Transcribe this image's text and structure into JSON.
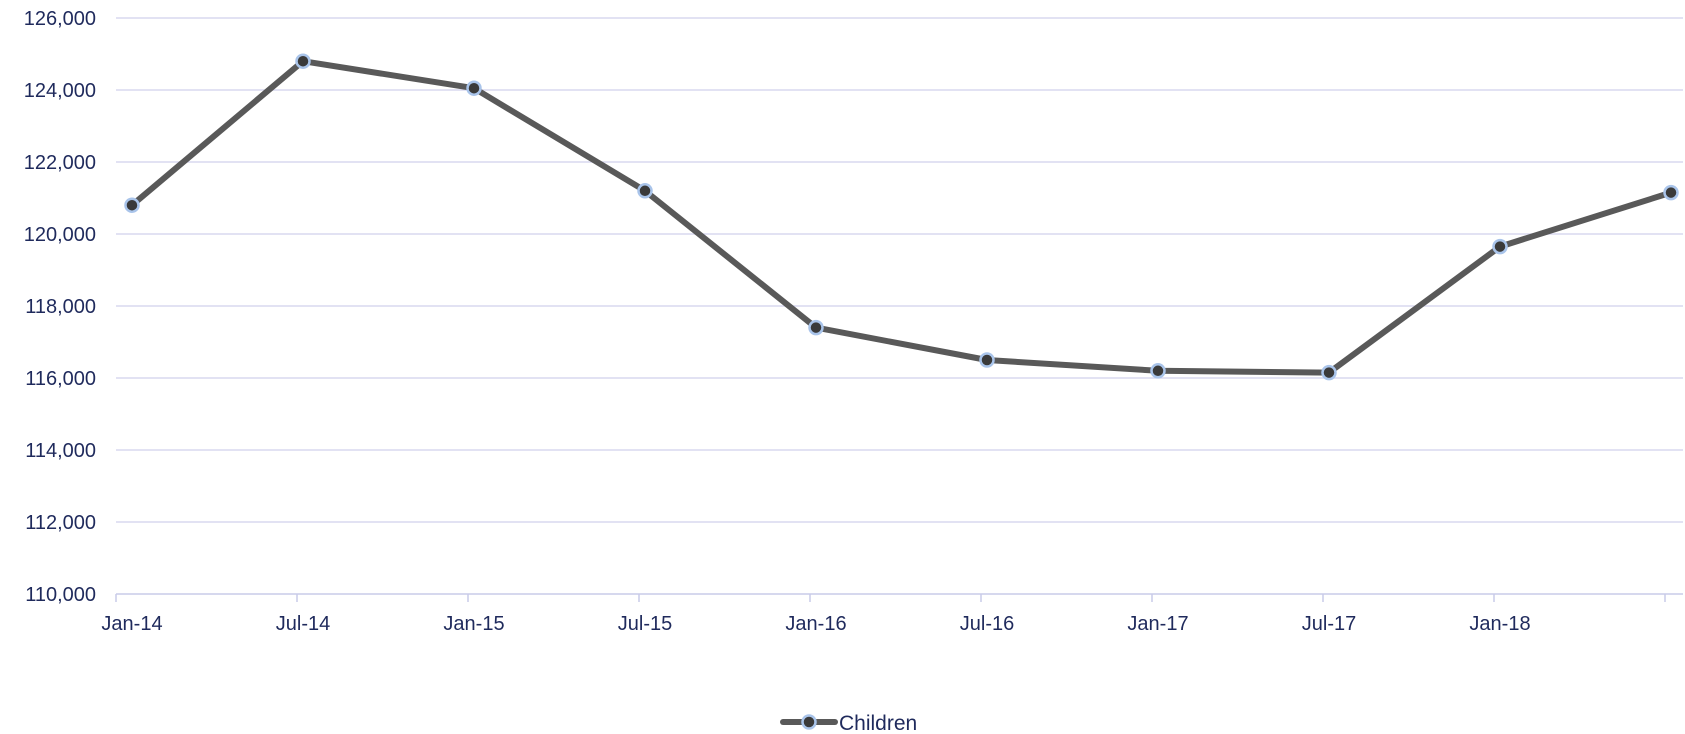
{
  "chart_data": {
    "type": "line",
    "title": "",
    "xlabel": "",
    "ylabel": "",
    "x_dates": [
      "2014-01",
      "2014-07",
      "2015-01",
      "2015-07",
      "2016-01",
      "2016-07",
      "2017-01",
      "2017-07",
      "2018-01",
      "2018-07"
    ],
    "x_tick_labels": [
      "Jan-14",
      "Jul-14",
      "Jan-15",
      "Jul-15",
      "Jan-16",
      "Jul-16",
      "Jan-17",
      "Jul-17",
      "Jan-18"
    ],
    "y_tick_labels": [
      "110,000",
      "112,000",
      "114,000",
      "116,000",
      "118,000",
      "120,000",
      "122,000",
      "124,000",
      "126,000"
    ],
    "ylim": [
      110000,
      126000
    ],
    "y_tick_step": 2000,
    "grid": true,
    "legend_position": "bottom-center",
    "series": [
      {
        "name": "Children",
        "values": [
          120800,
          124800,
          124050,
          121200,
          117400,
          116500,
          116200,
          116150,
          119650,
          121150
        ],
        "line_color": "#595959",
        "marker_fill": "#3a3a3a",
        "marker_edge": "#a9c4ea"
      }
    ],
    "colors": {
      "gridline": "#d9d9ef",
      "axis": "#c9cbe8",
      "text": "#1f2a5c"
    }
  }
}
